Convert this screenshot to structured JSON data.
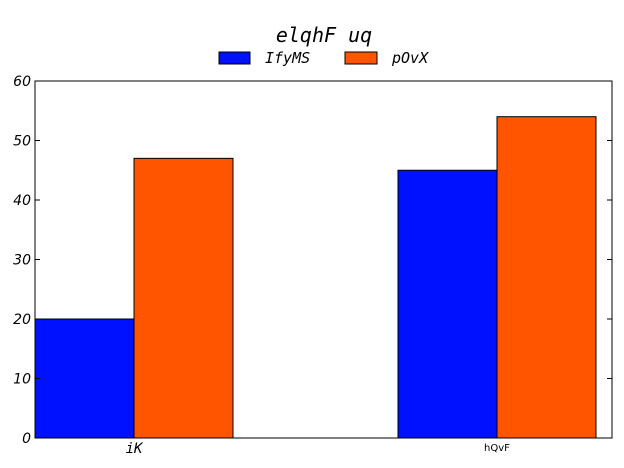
{
  "chart_data": {
    "type": "bar",
    "title": "elqhF uq",
    "categories": [
      "iK",
      "hQvF"
    ],
    "series": [
      {
        "name": "IfyMS",
        "values": [
          20,
          45
        ],
        "color": "#0011ff"
      },
      {
        "name": "pOvX",
        "values": [
          47,
          54
        ],
        "color": "#ff5500"
      }
    ],
    "xlabel": "",
    "ylabel": "",
    "ylim": [
      0,
      60
    ],
    "yticks": [
      0,
      10,
      20,
      30,
      40,
      50,
      60
    ],
    "grid": false,
    "legend": "top-center"
  }
}
